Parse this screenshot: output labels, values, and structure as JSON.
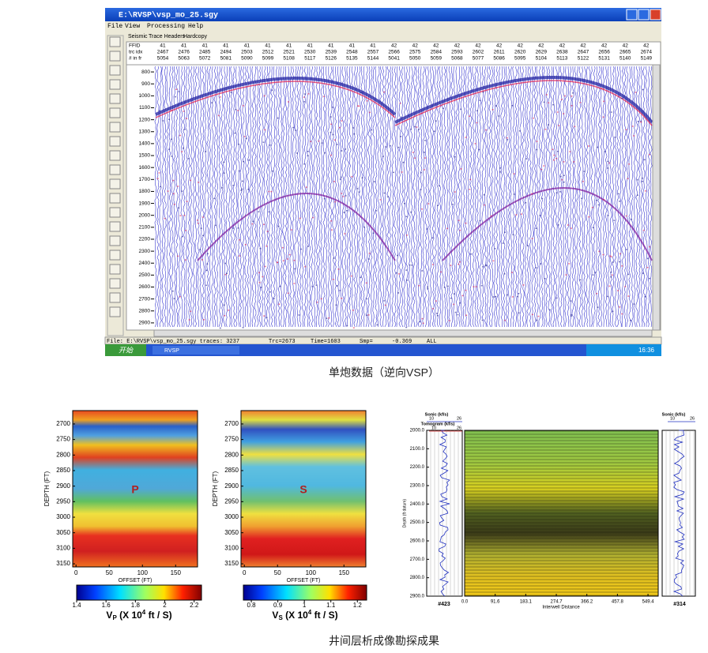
{
  "window": {
    "title": "E:\\RVSP\\vsp_mo_25.sgy",
    "menu": [
      "File",
      "View",
      "Processing",
      "Help"
    ],
    "tabs": [
      "Seismic",
      "Trace Headers",
      "Hardcopy"
    ],
    "header_row_labels": [
      "FFID",
      "trc idx",
      "# in fr"
    ],
    "ffid": [
      41,
      41,
      41,
      41,
      41,
      41,
      41,
      41,
      41,
      41,
      41,
      42,
      42,
      42,
      42,
      42,
      42,
      42,
      42,
      42,
      42,
      42,
      42,
      42
    ],
    "trc_idx": [
      2467,
      2476,
      2485,
      2494,
      2503,
      2512,
      2521,
      2530,
      2539,
      2548,
      2557,
      2566,
      2575,
      2584,
      2593,
      2602,
      2611,
      2620,
      2629,
      2638,
      2647,
      2656,
      2665,
      2674
    ],
    "in_fr": [
      5054,
      5063,
      5072,
      5081,
      5090,
      5099,
      5108,
      5117,
      5126,
      5135,
      5144,
      5041,
      5050,
      5059,
      5068,
      5077,
      5086,
      5095,
      5104,
      5113,
      5122,
      5131,
      5140,
      5149
    ],
    "depth_ylim": [
      740,
      2960
    ],
    "depth_ticks": [
      800,
      900,
      1000,
      1100,
      1200,
      1300,
      1400,
      1500,
      1600,
      1700,
      1800,
      1900,
      2000,
      2100,
      2200,
      2300,
      2400,
      2500,
      2600,
      2700,
      2800,
      2900
    ],
    "status": [
      "File: E:\\RVSP\\vsp_mo_25.sgy traces: 3237",
      "Trc=2673",
      "Time=1603",
      "Smp=",
      "-0.369",
      "ALL"
    ],
    "taskbar": {
      "start": "开始",
      "task": "RVSP",
      "clock": "16:36"
    }
  },
  "caption_top": "单炮数据（逆向VSP）",
  "vp_panel": {
    "letter": "P",
    "ylabel": "DEPTH (FT)",
    "xlabel": "OFFSET (FT)",
    "ylim": [
      2657,
      3160
    ],
    "yticks": [
      2700,
      2750,
      2800,
      2850,
      2900,
      2950,
      3000,
      3050,
      3100,
      3150
    ],
    "xlim": [
      -5,
      183
    ],
    "xticks": [
      0,
      50,
      100,
      150
    ],
    "colorbar_lim": [
      1.4,
      2.25
    ],
    "colorbar_ticks": [
      1.4,
      1.6,
      1.8,
      2,
      2.2
    ],
    "colorbar_label": {
      "symbol": "V",
      "subscript": "P",
      "before": " (X 10",
      "exponent": "4",
      "after": " ft / S)"
    }
  },
  "vs_panel": {
    "letter": "S",
    "ylabel": "DEPTH (FT)",
    "xlabel": "OFFSET (FT)",
    "ylim": [
      2657,
      3160
    ],
    "yticks": [
      2700,
      2750,
      2800,
      2850,
      2900,
      2950,
      3000,
      3050,
      3100,
      3150
    ],
    "xlim": [
      -5,
      183
    ],
    "xticks": [
      0,
      50,
      100,
      150
    ],
    "colorbar_lim": [
      0.77,
      1.235
    ],
    "colorbar_ticks": [
      0.8,
      0.9,
      1,
      1.1,
      1.2
    ],
    "colorbar_label": {
      "symbol": "V",
      "subscript": "S",
      "before": " (X 10",
      "exponent": "4",
      "after": " ft / S)"
    }
  },
  "crosswell": {
    "sonic_label": "Sonic (kf/s)",
    "tomogram_label": "Tomogram (kf/s)",
    "log_scale": [
      10,
      26
    ],
    "well_left": "#423",
    "well_right": "#314",
    "ylabel": "Depth (ft datum)",
    "xlabel": "Interwell Distance",
    "ylim": [
      2000,
      2900
    ],
    "yticks": [
      {
        "value": 2000,
        "label": "2000.0"
      },
      {
        "value": 2100,
        "label": "2100.0"
      },
      {
        "value": 2200,
        "label": "2200.0"
      },
      {
        "value": 2300,
        "label": "2300.0"
      },
      {
        "value": 2400,
        "label": "2400.0"
      },
      {
        "value": 2500,
        "label": "2500.0"
      },
      {
        "value": 2600,
        "label": "2600.0"
      },
      {
        "value": 2700,
        "label": "2700.0"
      },
      {
        "value": 2800,
        "label": "2800.0"
      },
      {
        "value": 2900,
        "label": "2900.0"
      }
    ],
    "xlim": [
      0,
      580
    ],
    "xticks": [
      {
        "value": 0,
        "label": "0.0"
      },
      91.6,
      183.1,
      274.7,
      366.2,
      457.8,
      549.4
    ]
  },
  "caption_bottom": "井间层析成像勘探成果"
}
